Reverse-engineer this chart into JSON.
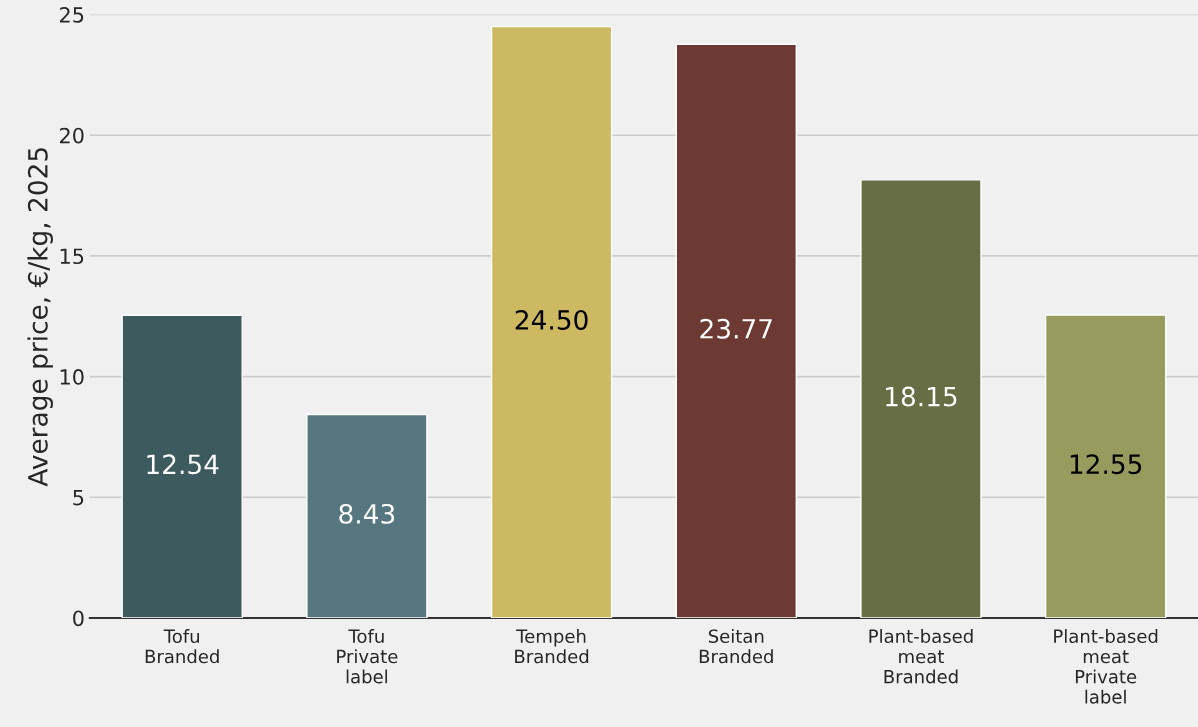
{
  "chart_data": {
    "type": "bar",
    "ylabel": "Average price, €/kg, 2025",
    "categories": [
      "Tofu\nBranded",
      "Tofu\nPrivate\nlabel",
      "Tempeh\nBranded",
      "Seitan\nBranded",
      "Plant-based\nmeat\nBranded",
      "Plant-based\nmeat\nPrivate\nlabel"
    ],
    "values": [
      12.54,
      8.43,
      24.5,
      23.77,
      18.15,
      12.55
    ],
    "value_labels": [
      "12.54",
      "8.43",
      "24.50",
      "23.77",
      "18.15",
      "12.55"
    ],
    "colors": [
      "#3d5a5e",
      "#56777f",
      "#cdb962",
      "#6c3a32",
      "#676e43",
      "#979b5e"
    ],
    "ylim": [
      0,
      25
    ],
    "yticks": [
      0,
      5,
      10,
      15,
      20,
      25
    ],
    "grid": "y",
    "legend": false
  }
}
